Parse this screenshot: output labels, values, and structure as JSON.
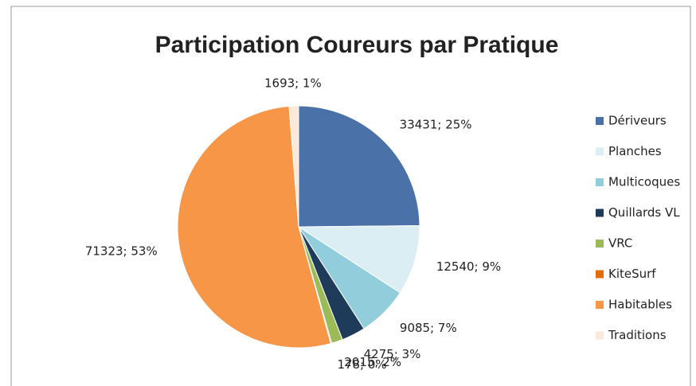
{
  "chart_data": {
    "type": "pie",
    "title": "Participation Coureurs par Pratique",
    "categories": [
      "Dériveurs",
      "Planches",
      "Multicoques",
      "Quillards VL",
      "VRC",
      "KiteSurf",
      "Habitables",
      "Traditions"
    ],
    "values": [
      33431,
      12540,
      9085,
      4275,
      2015,
      178,
      71323,
      1693
    ],
    "value_labels": [
      "33431; 25%",
      "12540; 9%",
      "9085; 7%",
      "4275; 3%",
      "2015; 2%",
      "178; 0%",
      "71323; 53%",
      "1693; 1%"
    ],
    "colors": [
      "#4a72a8",
      "#dbeef3",
      "#92cddc",
      "#1f3b5a",
      "#9bbb59",
      "#e36c0a",
      "#f79646",
      "#fde9d9"
    ],
    "legend": "right"
  }
}
